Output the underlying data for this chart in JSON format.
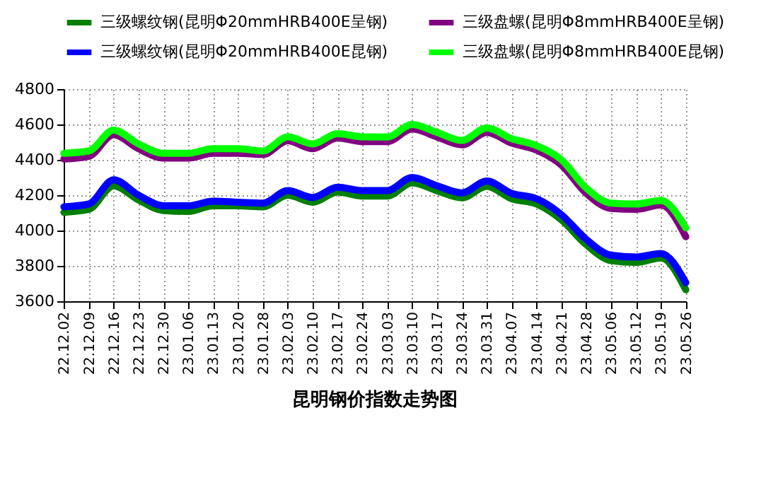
{
  "chart_data": {
    "type": "line",
    "title": "昆明钢价指数走势图",
    "categories": [
      "22.12.02",
      "22.12.09",
      "22.12.16",
      "22.12.23",
      "22.12.30",
      "23.01.06",
      "23.01.13",
      "23.01.20",
      "23.01.28",
      "23.02.03",
      "23.02.10",
      "23.02.17",
      "23.02.24",
      "23.03.03",
      "23.03.10",
      "23.03.17",
      "23.03.24",
      "23.03.31",
      "23.04.07",
      "23.04.14",
      "23.04.21",
      "23.04.28",
      "23.05.06",
      "23.05.12",
      "23.05.19",
      "23.05.26"
    ],
    "series": [
      {
        "name": "三级螺纹钢(昆明Φ20mmHRB400E呈钢)",
        "color": "#008000",
        "values": [
          4103,
          4120,
          4253,
          4173,
          4113,
          4108,
          4140,
          4140,
          4134,
          4200,
          4160,
          4218,
          4195,
          4195,
          4270,
          4225,
          4185,
          4250,
          4180,
          4150,
          4060,
          3920,
          3830,
          3820,
          3845,
          3665
        ]
      },
      {
        "name": "三级盘螺(昆明Φ8mmHRB400E呈钢)",
        "color": "#800080",
        "values": [
          4405,
          4420,
          4542,
          4463,
          4410,
          4410,
          4437,
          4437,
          4430,
          4508,
          4463,
          4524,
          4503,
          4503,
          4575,
          4529,
          4485,
          4555,
          4495,
          4455,
          4370,
          4210,
          4125,
          4120,
          4145,
          3965
        ]
      },
      {
        "name": "三级螺纹钢(昆明Φ20mmHRB400E昆钢)",
        "color": "#0000ff",
        "values": [
          4134,
          4150,
          4287,
          4200,
          4140,
          4140,
          4166,
          4160,
          4155,
          4226,
          4187,
          4245,
          4226,
          4226,
          4300,
          4253,
          4213,
          4280,
          4210,
          4180,
          4090,
          3950,
          3860,
          3850,
          3870,
          3705
        ]
      },
      {
        "name": "三级盘螺(昆明Φ8mmHRB400E昆钢)",
        "color": "#00ff00",
        "values": [
          4437,
          4450,
          4568,
          4490,
          4437,
          4437,
          4463,
          4463,
          4450,
          4530,
          4490,
          4548,
          4530,
          4529,
          4600,
          4555,
          4510,
          4580,
          4520,
          4480,
          4400,
          4240,
          4155,
          4150,
          4170,
          4015
        ]
      }
    ],
    "ylim": [
      3600,
      4800
    ],
    "yticks": [
      3600,
      3800,
      4000,
      4200,
      4400,
      4600,
      4800
    ],
    "grid": true,
    "legend": "top",
    "marker": "none",
    "line_style": "solid"
  }
}
